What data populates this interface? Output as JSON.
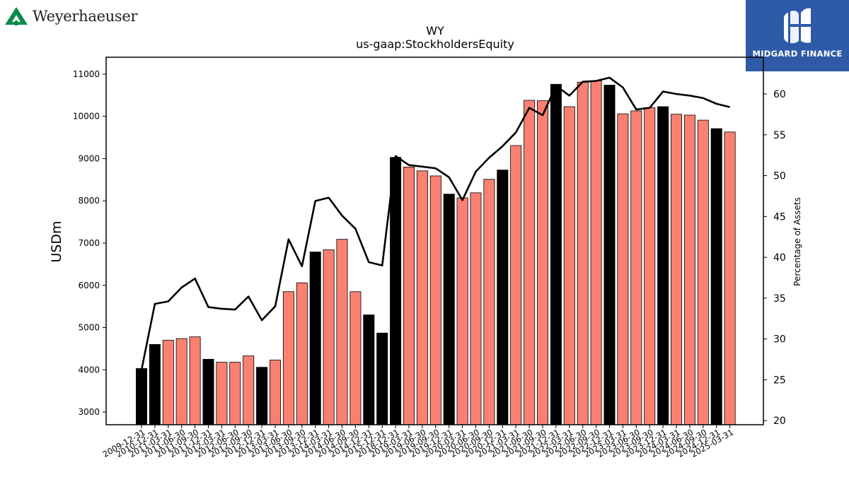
{
  "logos": {
    "left_name": "Weyerhaeuser",
    "right_name": "MIDGARD FINANCE",
    "left_color": "#0a8a4a",
    "right_bg": "#2e5aa8"
  },
  "chart_data": {
    "type": "bar",
    "title": "WY",
    "subtitle": "us-gaap:StockholdersEquity",
    "ylabel": "USDm",
    "y2label": "Percentage of Assets",
    "ylim": [
      2700,
      11400
    ],
    "y2lim": [
      19.5,
      64.5
    ],
    "yticks": [
      3000,
      4000,
      5000,
      6000,
      7000,
      8000,
      9000,
      10000,
      11000
    ],
    "y2ticks": [
      20,
      25,
      30,
      35,
      40,
      45,
      50,
      55,
      60
    ],
    "bar_colors": {
      "annual": "#000000",
      "quarterly": "#fa8072"
    },
    "line_color": "#000000",
    "categories": [
      "2009-12-31",
      "2010-12-31",
      "2011-03-31",
      "2011-06-30",
      "2011-09-30",
      "2011-12-31",
      "2012-03-31",
      "2012-06-30",
      "2012-09-30",
      "2012-12-31",
      "2013-03-31",
      "2013-06-30",
      "2013-09-30",
      "2013-12-31",
      "2014-03-31",
      "2014-06-30",
      "2014-09-30",
      "2014-12-31",
      "2015-12-31",
      "2018-12-31",
      "2019-03-31",
      "2019-06-30",
      "2019-09-30",
      "2019-12-31",
      "2020-03-31",
      "2020-06-30",
      "2020-09-30",
      "2020-12-31",
      "2021-03-31",
      "2021-06-30",
      "2021-09-30",
      "2021-12-31",
      "2022-03-31",
      "2022-06-30",
      "2022-09-30",
      "2022-12-31",
      "2023-03-31",
      "2023-06-30",
      "2023-09-30",
      "2023-12-31",
      "2024-03-31",
      "2024-06-30",
      "2024-09-30",
      "2024-12-31",
      "2025-03-31"
    ],
    "series": [
      {
        "kind": "bar",
        "values": [
          4030,
          4600,
          4700,
          4740,
          4780,
          4250,
          4180,
          4180,
          4330,
          4060,
          4230,
          5850,
          6060,
          6790,
          6840,
          7090,
          5850,
          5300,
          4870,
          9030,
          8800,
          8710,
          8590,
          8160,
          8070,
          8190,
          8510,
          8730,
          9310,
          10380,
          10370,
          10760,
          10230,
          10810,
          10840,
          10740,
          10060,
          10130,
          10210,
          10230,
          10050,
          10030,
          9910,
          9710,
          9630
        ],
        "period": [
          "annual",
          "annual",
          "quarterly",
          "quarterly",
          "quarterly",
          "annual",
          "quarterly",
          "quarterly",
          "quarterly",
          "annual",
          "quarterly",
          "quarterly",
          "quarterly",
          "annual",
          "quarterly",
          "quarterly",
          "quarterly",
          "annual",
          "annual",
          "annual",
          "quarterly",
          "quarterly",
          "quarterly",
          "annual",
          "quarterly",
          "quarterly",
          "quarterly",
          "annual",
          "quarterly",
          "quarterly",
          "quarterly",
          "annual",
          "quarterly",
          "quarterly",
          "quarterly",
          "annual",
          "quarterly",
          "quarterly",
          "quarterly",
          "annual",
          "quarterly",
          "quarterly",
          "quarterly",
          "annual",
          "quarterly"
        ]
      },
      {
        "kind": "line",
        "axis": "right",
        "values": [
          26.2,
          34.3,
          34.6,
          36.3,
          37.4,
          33.9,
          33.7,
          33.6,
          35.2,
          32.3,
          34.0,
          42.2,
          38.9,
          46.9,
          47.3,
          45.1,
          43.5,
          39.4,
          39.0,
          52.4,
          51.3,
          51.1,
          50.9,
          49.8,
          47.0,
          50.5,
          52.2,
          53.6,
          55.3,
          58.3,
          57.4,
          61.0,
          59.8,
          61.5,
          61.6,
          62.0,
          60.8,
          58.1,
          58.3,
          60.3,
          60.0,
          59.8,
          59.5,
          58.8,
          58.4
        ]
      }
    ]
  }
}
